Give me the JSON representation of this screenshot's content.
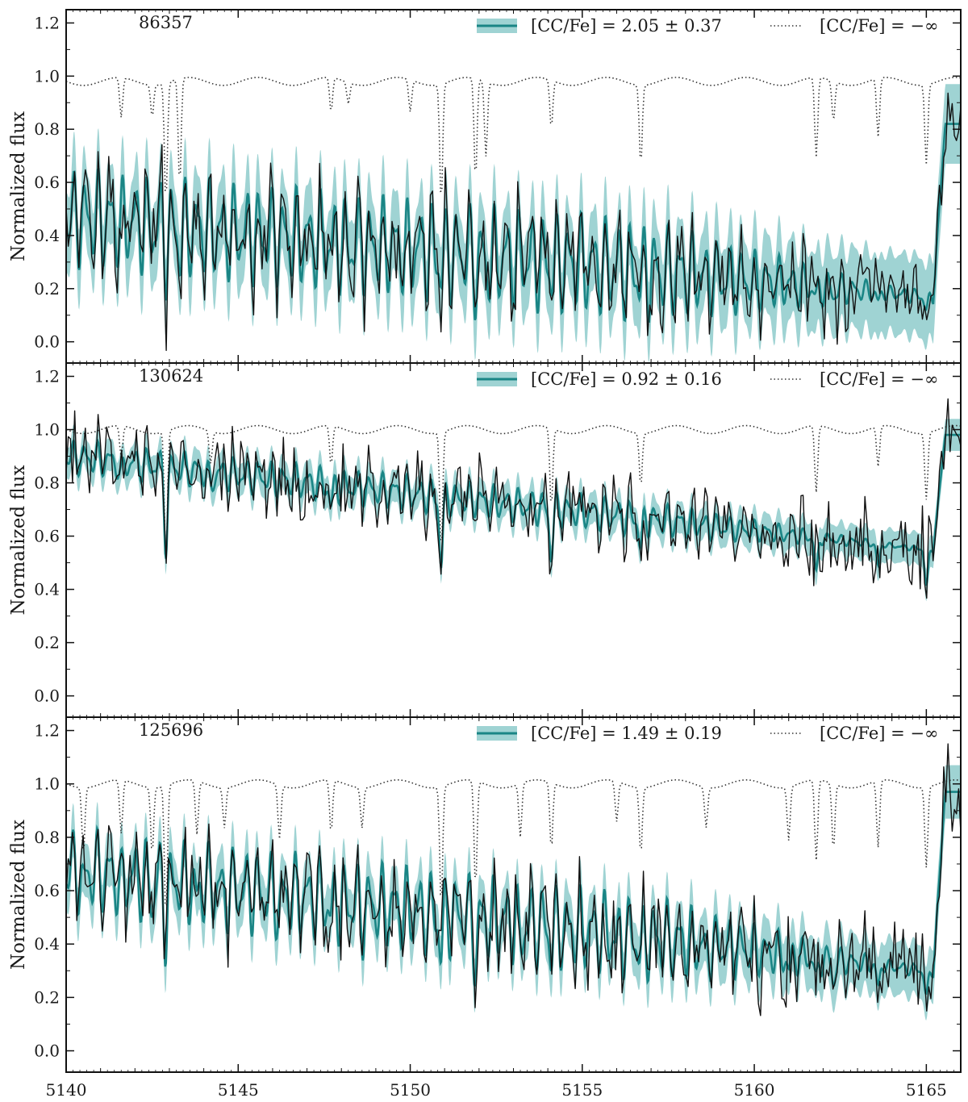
{
  "chart_data": [
    {
      "type": "line",
      "star_id": "86357",
      "ylabel": "Normalized flux",
      "ylim": [
        -0.08,
        1.25
      ],
      "yticks": [
        0.0,
        0.2,
        0.4,
        0.6,
        0.8,
        1.0,
        1.2
      ],
      "ytick_labels": [
        "0.0",
        "0.2",
        "0.4",
        "0.6",
        "0.8",
        "1.0",
        "1.2"
      ],
      "xlim": [
        5140,
        5166
      ],
      "legend_position": "top-right",
      "legend_fit": "[CC/Fe] = 2.05 ± 0.37",
      "legend_nocarbon": "[CC/Fe] = −∞",
      "series_colors": {
        "fit": "#1a8585",
        "band": "#7fc4c4",
        "observed": "#111111",
        "nocarbon": "#333333"
      },
      "model": {
        "continuum_start": 0.47,
        "continuum_end": 0.17,
        "amplitude": 0.2,
        "band_halfwidth": 0.15,
        "noise": 0.12,
        "head_level": 0.82,
        "dip_depth": 0.08
      },
      "reference": {
        "level": 0.98,
        "dips": [
          [
            5141.6,
            0.15
          ],
          [
            5142.5,
            0.12
          ],
          [
            5142.9,
            0.45
          ],
          [
            5143.3,
            0.4
          ],
          [
            5147.7,
            0.13
          ],
          [
            5148.2,
            0.08
          ],
          [
            5150.0,
            0.12
          ],
          [
            5150.9,
            0.45
          ],
          [
            5151.9,
            0.38
          ],
          [
            5152.2,
            0.28
          ],
          [
            5154.1,
            0.18
          ],
          [
            5156.7,
            0.3
          ],
          [
            5161.8,
            0.3
          ],
          [
            5162.3,
            0.15
          ],
          [
            5163.6,
            0.22
          ],
          [
            5165.0,
            0.3
          ]
        ]
      }
    },
    {
      "type": "line",
      "star_id": "130624",
      "ylabel": "Normalized flux",
      "ylim": [
        -0.08,
        1.25
      ],
      "yticks": [
        0.0,
        0.2,
        0.4,
        0.6,
        0.8,
        1.0,
        1.2
      ],
      "ytick_labels": [
        "0.0",
        "0.2",
        "0.4",
        "0.6",
        "0.8",
        "1.0",
        "1.2"
      ],
      "xlim": [
        5140,
        5166
      ],
      "legend_position": "top-right",
      "legend_fit": "[CC/Fe] = 0.92 ± 0.16",
      "legend_nocarbon": "[CC/Fe] = −∞",
      "series_colors": {
        "fit": "#1a8585",
        "band": "#7fc4c4",
        "observed": "#111111",
        "nocarbon": "#333333"
      },
      "model": {
        "continuum_start": 0.9,
        "continuum_end": 0.55,
        "amplitude": 0.07,
        "band_halfwidth": 0.06,
        "noise": 0.11,
        "head_level": 0.98,
        "dip_depth": 0.25
      },
      "reference": {
        "level": 1.0,
        "dips": [
          [
            5141.6,
            0.12
          ],
          [
            5142.9,
            0.5
          ],
          [
            5144.2,
            0.12
          ],
          [
            5147.7,
            0.15
          ],
          [
            5150.9,
            0.45
          ],
          [
            5154.1,
            0.3
          ],
          [
            5156.7,
            0.2
          ],
          [
            5161.8,
            0.25
          ],
          [
            5163.6,
            0.15
          ],
          [
            5165.0,
            0.25
          ]
        ]
      }
    },
    {
      "type": "line",
      "star_id": "125696",
      "ylabel": "Normalized flux",
      "ylim": [
        -0.08,
        1.25
      ],
      "yticks": [
        0.0,
        0.2,
        0.4,
        0.6,
        0.8,
        1.0,
        1.2
      ],
      "ytick_labels": [
        "0.0",
        "0.2",
        "0.4",
        "0.6",
        "0.8",
        "1.0",
        "1.2"
      ],
      "xlim": [
        5140,
        5166
      ],
      "xticks": [
        5140,
        5145,
        5150,
        5155,
        5160,
        5165
      ],
      "xtick_labels": [
        "5140",
        "5145",
        "5150",
        "5155",
        "5160",
        "5165"
      ],
      "legend_position": "top-right",
      "legend_fit": "[CC/Fe] = 1.49 ± 0.19",
      "legend_nocarbon": "[CC/Fe] = −∞",
      "series_colors": {
        "fit": "#1a8585",
        "band": "#7fc4c4",
        "observed": "#111111",
        "nocarbon": "#333333"
      },
      "model": {
        "continuum_start": 0.68,
        "continuum_end": 0.3,
        "amplitude": 0.17,
        "band_halfwidth": 0.1,
        "noise": 0.12,
        "head_level": 0.97,
        "dip_depth": 0.15
      },
      "reference": {
        "level": 1.0,
        "dips": [
          [
            5140.5,
            0.25
          ],
          [
            5141.6,
            0.2
          ],
          [
            5142.5,
            0.25
          ],
          [
            5142.9,
            0.5
          ],
          [
            5143.8,
            0.2
          ],
          [
            5144.6,
            0.15
          ],
          [
            5146.2,
            0.2
          ],
          [
            5147.7,
            0.2
          ],
          [
            5148.6,
            0.15
          ],
          [
            5150.9,
            0.45
          ],
          [
            5151.9,
            0.4
          ],
          [
            5153.2,
            0.2
          ],
          [
            5154.1,
            0.25
          ],
          [
            5156.0,
            0.15
          ],
          [
            5156.7,
            0.25
          ],
          [
            5158.6,
            0.15
          ],
          [
            5161.0,
            0.2
          ],
          [
            5161.8,
            0.3
          ],
          [
            5162.3,
            0.25
          ],
          [
            5163.6,
            0.25
          ],
          [
            5165.0,
            0.3
          ]
        ]
      }
    }
  ]
}
